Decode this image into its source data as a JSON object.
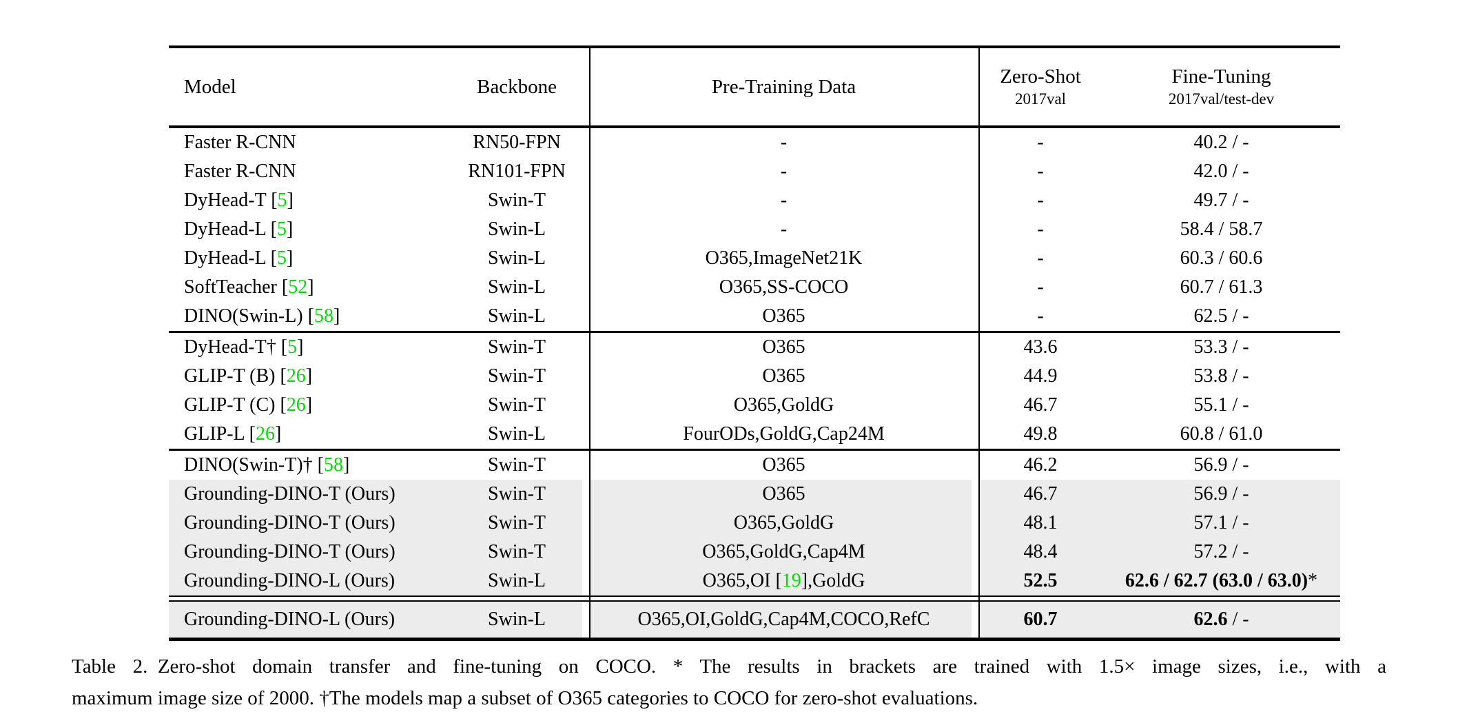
{
  "colors": {
    "citation_green": "#00DD00",
    "highlight_gray": "#ECECEC",
    "text": "#000000",
    "background": "#FFFFFF"
  },
  "header": {
    "model": "Model",
    "backbone": "Backbone",
    "pretrain": "Pre-Training Data",
    "zeroshot_line1": "Zero-Shot",
    "zeroshot_line2": "2017val",
    "finetune_line1": "Fine-Tuning",
    "finetune_line2": "2017val/test-dev"
  },
  "table": {
    "groups": [
      {
        "separator": "none",
        "tall": false,
        "rows": [
          {
            "model": [
              [
                "Faster R-CNN",
                "k"
              ]
            ],
            "backbone": "RN50-FPN",
            "pretrain": [
              [
                "-",
                "k"
              ]
            ],
            "zs": "-",
            "zs_bold": false,
            "ft": [
              [
                "40.2 / -",
                "k"
              ]
            ],
            "hl": false
          },
          {
            "model": [
              [
                "Faster R-CNN",
                "k"
              ]
            ],
            "backbone": "RN101-FPN",
            "pretrain": [
              [
                "-",
                "k"
              ]
            ],
            "zs": "-",
            "zs_bold": false,
            "ft": [
              [
                "42.0 / -",
                "k"
              ]
            ],
            "hl": false
          },
          {
            "model": [
              [
                "DyHead-T [",
                "k"
              ],
              [
                "5",
                "g"
              ],
              [
                "]",
                "k"
              ]
            ],
            "backbone": "Swin-T",
            "pretrain": [
              [
                "-",
                "k"
              ]
            ],
            "zs": "-",
            "zs_bold": false,
            "ft": [
              [
                "49.7 / -",
                "k"
              ]
            ],
            "hl": false
          },
          {
            "model": [
              [
                "DyHead-L [",
                "k"
              ],
              [
                "5",
                "g"
              ],
              [
                "]",
                "k"
              ]
            ],
            "backbone": "Swin-L",
            "pretrain": [
              [
                "-",
                "k"
              ]
            ],
            "zs": "-",
            "zs_bold": false,
            "ft": [
              [
                "58.4 / 58.7",
                "k"
              ]
            ],
            "hl": false
          },
          {
            "model": [
              [
                "DyHead-L [",
                "k"
              ],
              [
                "5",
                "g"
              ],
              [
                "]",
                "k"
              ]
            ],
            "backbone": "Swin-L",
            "pretrain": [
              [
                "O365,ImageNet21K",
                "k"
              ]
            ],
            "zs": "-",
            "zs_bold": false,
            "ft": [
              [
                "60.3 / 60.6",
                "k"
              ]
            ],
            "hl": false
          },
          {
            "model": [
              [
                "SoftTeacher [",
                "k"
              ],
              [
                "52",
                "g"
              ],
              [
                "]",
                "k"
              ]
            ],
            "backbone": "Swin-L",
            "pretrain": [
              [
                "O365,SS-COCO",
                "k"
              ]
            ],
            "zs": "-",
            "zs_bold": false,
            "ft": [
              [
                "60.7 / 61.3",
                "k"
              ]
            ],
            "hl": false
          },
          {
            "model": [
              [
                "DINO(Swin-L) [",
                "k"
              ],
              [
                "58",
                "g"
              ],
              [
                "]",
                "k"
              ]
            ],
            "backbone": "Swin-L",
            "pretrain": [
              [
                "O365",
                "k"
              ]
            ],
            "zs": "-",
            "zs_bold": false,
            "ft": [
              [
                "62.5 / -",
                "k"
              ]
            ],
            "hl": false
          }
        ]
      },
      {
        "separator": "single",
        "tall": false,
        "rows": [
          {
            "model": [
              [
                "DyHead-T† [",
                "k"
              ],
              [
                "5",
                "g"
              ],
              [
                "]",
                "k"
              ]
            ],
            "backbone": "Swin-T",
            "pretrain": [
              [
                "O365",
                "k"
              ]
            ],
            "zs": "43.6",
            "zs_bold": false,
            "ft": [
              [
                "53.3 / -",
                "k"
              ]
            ],
            "hl": false
          },
          {
            "model": [
              [
                "GLIP-T (B) [",
                "k"
              ],
              [
                "26",
                "g"
              ],
              [
                "]",
                "k"
              ]
            ],
            "backbone": "Swin-T",
            "pretrain": [
              [
                "O365",
                "k"
              ]
            ],
            "zs": "44.9",
            "zs_bold": false,
            "ft": [
              [
                "53.8 / -",
                "k"
              ]
            ],
            "hl": false
          },
          {
            "model": [
              [
                "GLIP-T (C) [",
                "k"
              ],
              [
                "26",
                "g"
              ],
              [
                "]",
                "k"
              ]
            ],
            "backbone": "Swin-T",
            "pretrain": [
              [
                "O365,GoldG",
                "k"
              ]
            ],
            "zs": "46.7",
            "zs_bold": false,
            "ft": [
              [
                "55.1 / -",
                "k"
              ]
            ],
            "hl": false
          },
          {
            "model": [
              [
                "GLIP-L [",
                "k"
              ],
              [
                "26",
                "g"
              ],
              [
                "]",
                "k"
              ]
            ],
            "backbone": "Swin-L",
            "pretrain": [
              [
                "FourODs,GoldG,Cap24M",
                "k"
              ]
            ],
            "zs": "49.8",
            "zs_bold": false,
            "ft": [
              [
                "60.8 / 61.0",
                "k"
              ]
            ],
            "hl": false
          }
        ]
      },
      {
        "separator": "single",
        "tall": false,
        "rows": [
          {
            "model": [
              [
                "DINO(Swin-T)† [",
                "k"
              ],
              [
                "58",
                "g"
              ],
              [
                "]",
                "k"
              ]
            ],
            "backbone": "Swin-T",
            "pretrain": [
              [
                "O365",
                "k"
              ]
            ],
            "zs": "46.2",
            "zs_bold": false,
            "ft": [
              [
                "56.9 / -",
                "k"
              ]
            ],
            "hl": false
          },
          {
            "model": [
              [
                "Grounding-DINO-T (Ours)",
                "k"
              ]
            ],
            "backbone": "Swin-T",
            "pretrain": [
              [
                "O365",
                "k"
              ]
            ],
            "zs": "46.7",
            "zs_bold": false,
            "ft": [
              [
                "56.9 / -",
                "k"
              ]
            ],
            "hl": true
          },
          {
            "model": [
              [
                "Grounding-DINO-T (Ours)",
                "k"
              ]
            ],
            "backbone": "Swin-T",
            "pretrain": [
              [
                "O365,GoldG",
                "k"
              ]
            ],
            "zs": "48.1",
            "zs_bold": false,
            "ft": [
              [
                "57.1 / -",
                "k"
              ]
            ],
            "hl": true
          },
          {
            "model": [
              [
                "Grounding-DINO-T (Ours)",
                "k"
              ]
            ],
            "backbone": "Swin-T",
            "pretrain": [
              [
                "O365,GoldG,Cap4M",
                "k"
              ]
            ],
            "zs": "48.4",
            "zs_bold": false,
            "ft": [
              [
                "57.2 / -",
                "k"
              ]
            ],
            "hl": true
          },
          {
            "model": [
              [
                "Grounding-DINO-L (Ours)",
                "k"
              ]
            ],
            "backbone": "Swin-L",
            "pretrain": [
              [
                "O365,OI [",
                "k"
              ],
              [
                "19",
                "g"
              ],
              [
                "],GoldG",
                "k"
              ]
            ],
            "zs": "52.5",
            "zs_bold": true,
            "ft": [
              [
                "62.6 / 62.7 (63.0 / 63.0)",
                "b"
              ],
              [
                "*",
                "k"
              ]
            ],
            "hl": true
          }
        ]
      },
      {
        "separator": "double",
        "tall": true,
        "rows": [
          {
            "model": [
              [
                "Grounding-DINO-L (Ours)",
                "k"
              ]
            ],
            "backbone": "Swin-L",
            "pretrain": [
              [
                "O365,OI,GoldG,Cap4M,COCO,RefC",
                "k"
              ]
            ],
            "zs": "60.7",
            "zs_bold": true,
            "ft": [
              [
                "62.6",
                "b"
              ],
              [
                " / -",
                "k"
              ]
            ],
            "hl": true
          }
        ]
      }
    ]
  },
  "caption": {
    "line1": "Table 2. Zero-shot domain transfer and fine-tuning on COCO. * The results in brackets are trained with 1.5× image sizes, i.e., with a",
    "line2": "maximum image size of 2000. †The models map a subset of O365 categories to COCO for zero-shot evaluations."
  }
}
